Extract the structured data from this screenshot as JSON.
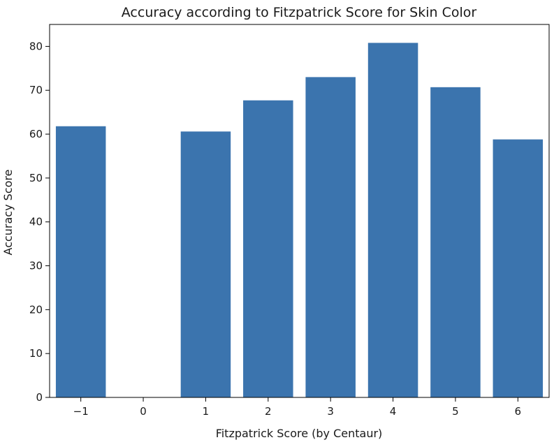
{
  "chart_data": {
    "type": "bar",
    "title": "Accuracy according to Fitzpatrick Score for Skin Color",
    "xlabel": "Fitzpatrick Score (by Centaur)",
    "ylabel": "Accuracy Score",
    "x": [
      -1,
      1,
      2,
      3,
      4,
      5,
      6
    ],
    "values": [
      61.8,
      60.6,
      67.7,
      73.0,
      80.8,
      70.7,
      58.8
    ],
    "x_ticks": [
      -1,
      0,
      1,
      2,
      3,
      4,
      5,
      6
    ],
    "x_tick_labels": [
      "−1",
      "0",
      "1",
      "2",
      "3",
      "4",
      "5",
      "6"
    ],
    "xlim": [
      -1.5,
      6.5
    ],
    "ylim": [
      0,
      85
    ],
    "y_ticks": [
      0,
      10,
      20,
      30,
      40,
      50,
      60,
      70,
      80
    ],
    "bar_width": 0.8,
    "bar_color": "#3b74ae",
    "grid": false,
    "legend": "none"
  }
}
